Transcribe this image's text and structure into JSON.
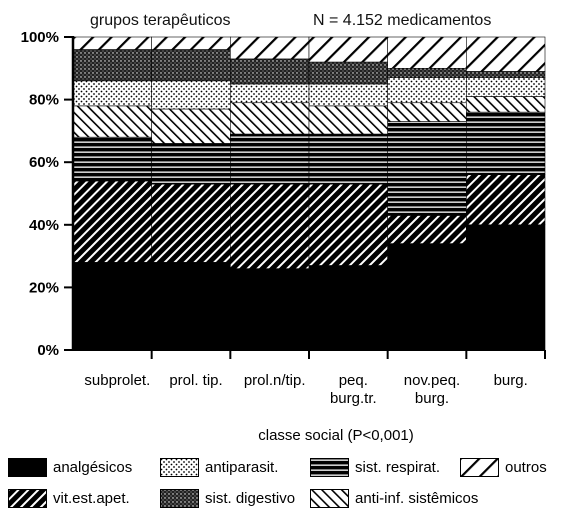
{
  "chart_data": {
    "type": "bar",
    "stacked": true,
    "normalized": true,
    "title": "grupos terapêuticos",
    "subtitle": "N = 4.152 medicamentos",
    "xlabel": "classe social (P<0,001)",
    "ylabel": "",
    "ylim": [
      0,
      100
    ],
    "yticks": [
      "0%",
      "20%",
      "40%",
      "60%",
      "80%",
      "100%"
    ],
    "categories": [
      [
        "subprolet."
      ],
      [
        "prol. tip."
      ],
      [
        "prol.n/tip."
      ],
      [
        "peq.",
        "burg.tr."
      ],
      [
        "nov.peq.",
        "burg."
      ],
      [
        "burg."
      ]
    ],
    "series": [
      {
        "name": "analgésicos",
        "pattern": "solid",
        "values": [
          28,
          28,
          26,
          27,
          34,
          40
        ]
      },
      {
        "name": "vit.est.apet.",
        "pattern": "hatch-forward",
        "values": [
          26,
          25,
          27,
          26,
          9,
          16
        ]
      },
      {
        "name": "sist. respirat.",
        "pattern": "horizontal-lines",
        "values": [
          14,
          13,
          16,
          16,
          30,
          20
        ]
      },
      {
        "name": "anti-inf. sistêmicos",
        "pattern": "hatch-back",
        "values": [
          10,
          11,
          10,
          9,
          6,
          5
        ]
      },
      {
        "name": "antiparasit.",
        "pattern": "dots",
        "values": [
          8,
          9,
          6,
          7,
          8,
          6
        ]
      },
      {
        "name": "sist. digestivo",
        "pattern": "dense-dots",
        "values": [
          10,
          10,
          8,
          7,
          3,
          2
        ]
      },
      {
        "name": "outros",
        "pattern": "hatch-forward-sparse",
        "values": [
          4,
          4,
          7,
          8,
          10,
          11
        ]
      }
    ],
    "grid": false,
    "legend_position": "bottom"
  },
  "legend": [
    {
      "label": "analgésicos",
      "pattern": "solid"
    },
    {
      "label": "antiparasit.",
      "pattern": "dots"
    },
    {
      "label": "sist. respirat.",
      "pattern": "horizontal-lines"
    },
    {
      "label": "outros",
      "pattern": "hatch-forward-sparse"
    },
    {
      "label": "vit.est.apet.",
      "pattern": "hatch-forward"
    },
    {
      "label": "sist. digestivo",
      "pattern": "dense-dots"
    },
    {
      "label": "anti-inf. sistêmicos",
      "pattern": "hatch-back"
    }
  ]
}
